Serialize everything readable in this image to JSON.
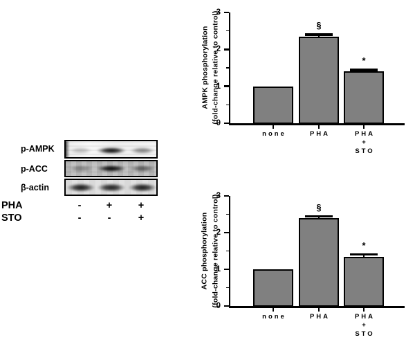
{
  "colors": {
    "background": "#ffffff",
    "bar_fill": "#808080",
    "axis": "#000000",
    "text": "#000000"
  },
  "blot_panel": {
    "rows": [
      {
        "label": "p-AMPK",
        "band_intensities": [
          0.22,
          0.95,
          0.45
        ],
        "edge_artifact": true
      },
      {
        "label": "p-ACC",
        "band_intensities": [
          0.32,
          0.97,
          0.52
        ],
        "edge_artifact": false
      },
      {
        "label": "β-actin",
        "band_intensities": [
          0.9,
          0.88,
          0.9
        ],
        "edge_artifact": false
      }
    ],
    "condition_rows": [
      {
        "label": "PHA",
        "values": [
          "-",
          "+",
          "+"
        ]
      },
      {
        "label": "STO",
        "values": [
          "-",
          "-",
          "+"
        ]
      }
    ]
  },
  "chart_data": [
    {
      "type": "bar",
      "title": "",
      "ylabel_line1": "AMPK phosphorylation",
      "ylabel_line2": "(fold-change relative to control)",
      "categories": [
        [
          "none"
        ],
        [
          "PHA"
        ],
        [
          "PHA",
          "+",
          "STO"
        ]
      ],
      "values": [
        1.0,
        2.35,
        1.4
      ],
      "errors": [
        0,
        0.05,
        0.04
      ],
      "annotations": [
        "",
        "§",
        "*"
      ],
      "ylim": [
        0,
        3
      ],
      "yticks": [
        0,
        1,
        2,
        3
      ],
      "minor_tick_step": 0.5,
      "grid": false,
      "legend": "none"
    },
    {
      "type": "bar",
      "title": "",
      "ylabel_line1": "ACC phosphorylation",
      "ylabel_line2": "(fold-change relative to control)",
      "categories": [
        [
          "none"
        ],
        [
          "PHA"
        ],
        [
          "PHA",
          "+",
          "STO"
        ]
      ],
      "values": [
        1.0,
        2.4,
        1.34
      ],
      "errors": [
        0,
        0.04,
        0.06
      ],
      "annotations": [
        "",
        "§",
        "*"
      ],
      "ylim": [
        0,
        3
      ],
      "yticks": [
        0,
        1,
        2,
        3
      ],
      "minor_tick_step": 0.5,
      "grid": false,
      "legend": "none"
    }
  ]
}
